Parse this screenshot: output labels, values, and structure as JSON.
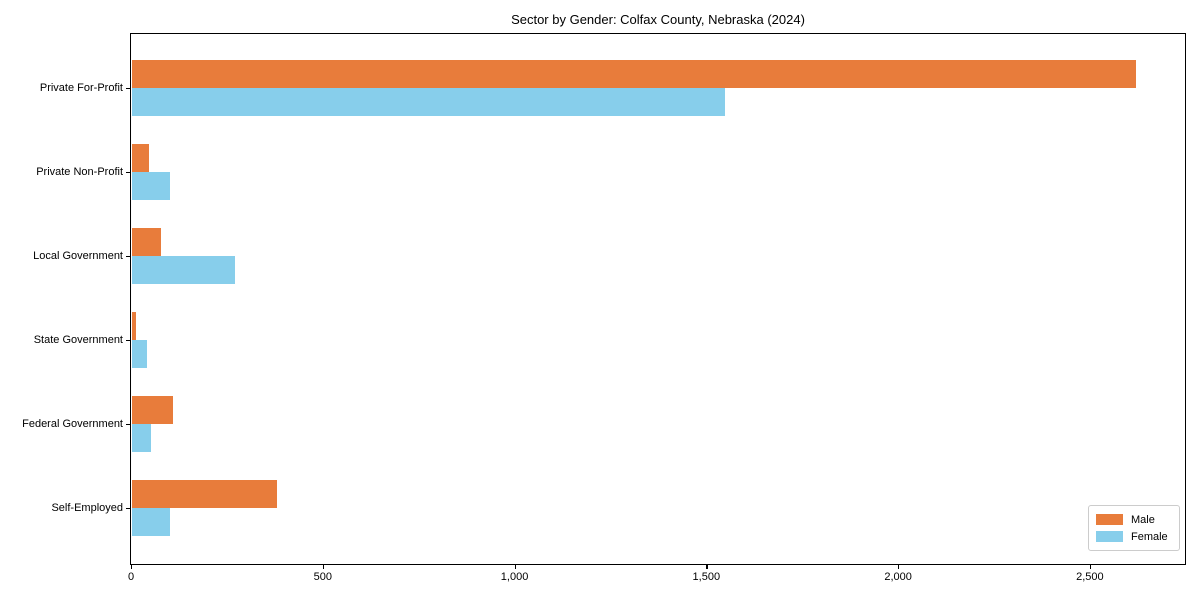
{
  "figure": {
    "background_color": "#ffffff",
    "axis_color": "#000000"
  },
  "chart_data": {
    "type": "bar",
    "orientation": "horizontal",
    "title": "Sector by Gender: Colfax County, Nebraska (2024)",
    "xlabel": "",
    "ylabel": "",
    "grid": false,
    "categories": [
      "Private For-Profit",
      "Private Non-Profit",
      "Local Government",
      "State Government",
      "Federal Government",
      "Self-Employed"
    ],
    "series": [
      {
        "name": "Male",
        "color": "#E87C3B",
        "values": [
          2617,
          44,
          76,
          11,
          107,
          377
        ]
      },
      {
        "name": "Female",
        "color": "#87CEEB",
        "values": [
          1547,
          100,
          268,
          40,
          50,
          98
        ]
      }
    ],
    "xlim": [
      0,
      2748
    ],
    "xticks": {
      "values": [
        0,
        500,
        1000,
        1500,
        2000,
        2500
      ],
      "labels": [
        "0",
        "500",
        "1,000",
        "1,500",
        "2,000",
        "2,500"
      ]
    },
    "legend_position": "lower right"
  },
  "legend": {
    "entries": [
      {
        "label": "Male",
        "color": "#E87C3B"
      },
      {
        "label": "Female",
        "color": "#87CEEB"
      }
    ]
  }
}
